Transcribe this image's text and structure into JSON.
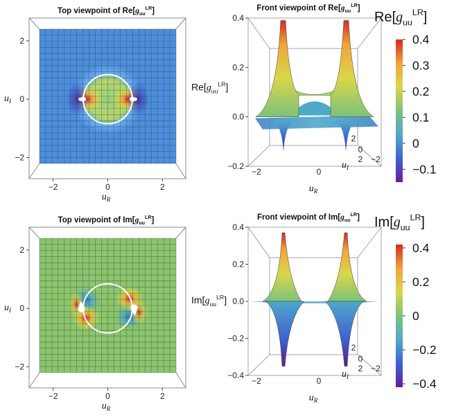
{
  "chart_data": [
    {
      "panel": "top-left",
      "type": "heatmap",
      "title": "Top viewpoint of Re[g_uu^LR]",
      "title_parts": {
        "head": "Top viewpoint of  Re[",
        "g": "g",
        "sub": "uu",
        "sup": "LR",
        "tail": "]"
      },
      "xlabel": {
        "base": "u",
        "sub": "R"
      },
      "ylabel": {
        "base": "u",
        "sub": "I"
      },
      "x_ticks": [
        "-2",
        "0",
        "2"
      ],
      "y_ticks": [
        "2",
        "0",
        "-2"
      ],
      "xlim": [
        -2.5,
        2.5
      ],
      "ylim": [
        -2.2,
        2.4
      ],
      "background_color": "#4d8edb",
      "unit_circle_radius": 0.9,
      "singular_points_x": [
        -0.9,
        0.9
      ]
    },
    {
      "panel": "top-right",
      "type": "area",
      "title": "Front viewpoint of Re[g_uu^LR]",
      "title_parts": {
        "head": "Front viewpoint of  Re[",
        "g": "g",
        "sub": "uu",
        "sup": "LR",
        "tail": "]"
      },
      "zlabel": {
        "head": "Re[",
        "g": "g",
        "sub": "uu",
        "sup": "LR",
        "tail": "]"
      },
      "xlabel": {
        "base": "u",
        "sub": "R"
      },
      "depth_label": {
        "base": "u",
        "sub": "I"
      },
      "z_ticks": [
        "0.4",
        "0.2",
        "0.0",
        "-0.2"
      ],
      "x_ticks": [
        "-2",
        "0",
        "2"
      ],
      "depth_ticks": [
        "2",
        "0",
        "-2"
      ],
      "zlim": [
        -0.2,
        0.4
      ],
      "peak_x": [
        -0.9,
        0.9
      ]
    },
    {
      "panel": "bottom-left",
      "type": "heatmap",
      "title": "Top viewpoint of Im[g_uu^LR]",
      "title_parts": {
        "head": "Top viewpoint of  Im[",
        "g": "g",
        "sub": "uu",
        "sup": "LR",
        "tail": "]"
      },
      "xlabel": {
        "base": "u",
        "sub": "R"
      },
      "ylabel": {
        "base": "u",
        "sub": "I"
      },
      "x_ticks": [
        "-2",
        "0",
        "2"
      ],
      "y_ticks": [
        "2",
        "0",
        "-2"
      ],
      "xlim": [
        -2.5,
        2.5
      ],
      "ylim": [
        -2.2,
        2.4
      ],
      "background_color": "#8cc56a",
      "unit_circle_radius": 0.9,
      "singular_points_x": [
        -0.9,
        0.9
      ]
    },
    {
      "panel": "bottom-right",
      "type": "area",
      "title": "Front viewpoint of Im[g_uu^LR]",
      "title_parts": {
        "head": "Front viewpoint of  Im[",
        "g": "g",
        "sub": "uu",
        "sup": "LR",
        "tail": "]"
      },
      "zlabel": {
        "head": "Im[",
        "g": "g",
        "sub": "uu",
        "sup": "LR",
        "tail": "]"
      },
      "xlabel": {
        "base": "u",
        "sub": "R"
      },
      "depth_label": {
        "base": "u",
        "sub": "I"
      },
      "z_ticks": [
        "0.4",
        "0.2",
        "0.0",
        "-0.2",
        "-0.4"
      ],
      "x_ticks": [
        "-2",
        "0",
        "2"
      ],
      "depth_ticks": [
        "2",
        "0",
        "-2"
      ],
      "zlim": [
        -0.4,
        0.4
      ],
      "peak_x": [
        -0.9,
        0.9
      ]
    }
  ],
  "colorbars": [
    {
      "title": {
        "head": "Re[",
        "g": "g",
        "sub": "uu",
        "sup": "LR",
        "tail": "]"
      },
      "ticks": [
        "0.4",
        "0.3",
        "0.2",
        "0.1",
        "0",
        "−0.1"
      ],
      "range": [
        -0.15,
        0.4
      ],
      "colors": [
        "#6a1b9a",
        "#3f5fd0",
        "#4fa9c9",
        "#7cc27a",
        "#d9d64a",
        "#f0a63a",
        "#d42a22"
      ]
    },
    {
      "title": {
        "head": "Im[",
        "g": "g",
        "sub": "uu",
        "sup": "LR",
        "tail": "]"
      },
      "ticks": [
        "0.4",
        "0.2",
        "0",
        "−0.2",
        "−0.4"
      ],
      "range": [
        -0.42,
        0.42
      ],
      "colors": [
        "#6a1b9a",
        "#3f5fd0",
        "#4fa9c9",
        "#7cc27a",
        "#d9d64a",
        "#f0a63a",
        "#d42a22"
      ]
    }
  ]
}
